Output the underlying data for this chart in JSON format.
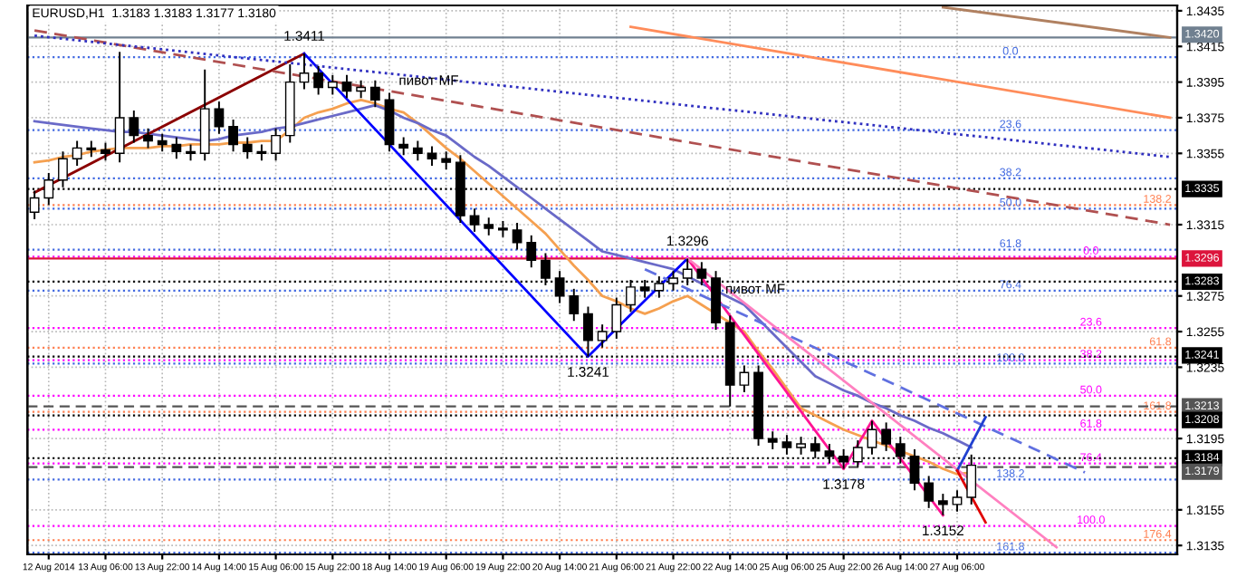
{
  "chart_data": {
    "type": "candlestick",
    "title": "EURUSD,H1  1.3183 1.3183 1.3177 1.3180",
    "categories": [
      null,
      "12 Aug 2014",
      null,
      null,
      null,
      "13 Aug 06:00",
      null,
      null,
      null,
      "13 Aug 22:00",
      null,
      null,
      null,
      "14 Aug 14:00",
      null,
      null,
      null,
      "15 Aug 06:00",
      null,
      null,
      null,
      "15 Aug 22:00",
      null,
      null,
      null,
      "18 Aug 14:00",
      null,
      null,
      null,
      "19 Aug 06:00",
      null,
      null,
      null,
      "19 Aug 22:00",
      null,
      null,
      null,
      "20 Aug 14:00",
      null,
      null,
      null,
      "21 Aug 06:00",
      null,
      null,
      null,
      "21 Aug 22:00",
      null,
      null,
      null,
      "22 Aug 14:00",
      null,
      null,
      null,
      "25 Aug 06:00",
      null,
      null,
      null,
      "25 Aug 22:00",
      null,
      null,
      null,
      "26 Aug 14:00",
      null,
      null,
      null,
      "27 Aug 06:00",
      null,
      null,
      null,
      null,
      null,
      null,
      null,
      null,
      null,
      null,
      null,
      null,
      null,
      null,
      null
    ],
    "ohlc": [
      [
        1.3322,
        1.3334,
        1.3318,
        1.333
      ],
      [
        1.333,
        1.3344,
        1.3326,
        1.334
      ],
      [
        1.334,
        1.3356,
        1.3336,
        1.3352
      ],
      [
        1.3352,
        1.3362,
        1.3348,
        1.3358
      ],
      [
        1.3358,
        1.3362,
        1.3353,
        1.3357
      ],
      [
        1.3357,
        1.3361,
        1.3351,
        1.3355
      ],
      [
        1.3355,
        1.3412,
        1.335,
        1.3375
      ],
      [
        1.3375,
        1.3379,
        1.3361,
        1.3365
      ],
      [
        1.3365,
        1.3369,
        1.3358,
        1.3362
      ],
      [
        1.3362,
        1.3366,
        1.3356,
        1.336
      ],
      [
        1.336,
        1.3364,
        1.3352,
        1.3356
      ],
      [
        1.3356,
        1.336,
        1.3351,
        1.3355
      ],
      [
        1.3355,
        1.3402,
        1.3351,
        1.338
      ],
      [
        1.338,
        1.3384,
        1.3366,
        1.337
      ],
      [
        1.337,
        1.3374,
        1.3356,
        1.336
      ],
      [
        1.336,
        1.3364,
        1.3352,
        1.3356
      ],
      [
        1.3356,
        1.336,
        1.3351,
        1.3355
      ],
      [
        1.3355,
        1.3369,
        1.3351,
        1.3365
      ],
      [
        1.3365,
        1.3405,
        1.3361,
        1.3395
      ],
      [
        1.3395,
        1.3411,
        1.3391,
        1.34
      ],
      [
        1.34,
        1.3404,
        1.3388,
        1.3392
      ],
      [
        1.3392,
        1.3399,
        1.3388,
        1.3395
      ],
      [
        1.3395,
        1.3399,
        1.3386,
        1.339
      ],
      [
        1.339,
        1.3396,
        1.3386,
        1.3392
      ],
      [
        1.3392,
        1.3396,
        1.3381,
        1.3385
      ],
      [
        1.3385,
        1.3389,
        1.3356,
        1.336
      ],
      [
        1.336,
        1.3364,
        1.3354,
        1.3358
      ],
      [
        1.3358,
        1.3362,
        1.3351,
        1.3355
      ],
      [
        1.3355,
        1.3359,
        1.3348,
        1.3352
      ],
      [
        1.3352,
        1.3356,
        1.3346,
        1.335
      ],
      [
        1.335,
        1.3354,
        1.3316,
        1.332
      ],
      [
        1.332,
        1.3324,
        1.3311,
        1.3315
      ],
      [
        1.3315,
        1.3319,
        1.3309,
        1.3313
      ],
      [
        1.3313,
        1.3317,
        1.3308,
        1.3312
      ],
      [
        1.3312,
        1.3316,
        1.3301,
        1.3305
      ],
      [
        1.3305,
        1.3309,
        1.3291,
        1.3295
      ],
      [
        1.3295,
        1.3299,
        1.3281,
        1.3285
      ],
      [
        1.3285,
        1.3289,
        1.3271,
        1.3275
      ],
      [
        1.3275,
        1.3279,
        1.3261,
        1.3265
      ],
      [
        1.3265,
        1.3269,
        1.3241,
        1.325
      ],
      [
        1.325,
        1.3259,
        1.3246,
        1.3255
      ],
      [
        1.3255,
        1.3274,
        1.3251,
        1.327
      ],
      [
        1.327,
        1.3284,
        1.3266,
        1.328
      ],
      [
        1.328,
        1.3284,
        1.3274,
        1.3278
      ],
      [
        1.3278,
        1.3286,
        1.3274,
        1.3282
      ],
      [
        1.3282,
        1.3289,
        1.3278,
        1.3285
      ],
      [
        1.3285,
        1.3296,
        1.3281,
        1.329
      ],
      [
        1.329,
        1.3294,
        1.3281,
        1.3285
      ],
      [
        1.3285,
        1.3289,
        1.3256,
        1.326
      ],
      [
        1.326,
        1.3264,
        1.3213,
        1.3225
      ],
      [
        1.3225,
        1.3236,
        1.3221,
        1.3232
      ],
      [
        1.3232,
        1.3236,
        1.3191,
        1.3195
      ],
      [
        1.3195,
        1.3199,
        1.3189,
        1.3193
      ],
      [
        1.3193,
        1.3197,
        1.3186,
        1.319
      ],
      [
        1.319,
        1.3196,
        1.3186,
        1.3192
      ],
      [
        1.3192,
        1.3196,
        1.3184,
        1.3188
      ],
      [
        1.3188,
        1.3192,
        1.3181,
        1.3185
      ],
      [
        1.3185,
        1.3189,
        1.3178,
        1.3182
      ],
      [
        1.3182,
        1.3194,
        1.3179,
        1.319
      ],
      [
        1.319,
        1.3205,
        1.3186,
        1.32
      ],
      [
        1.32,
        1.3204,
        1.3188,
        1.3192
      ],
      [
        1.3192,
        1.3196,
        1.3181,
        1.3185
      ],
      [
        1.3185,
        1.3189,
        1.3166,
        1.317
      ],
      [
        1.317,
        1.3174,
        1.3156,
        1.316
      ],
      [
        1.316,
        1.3164,
        1.3152,
        1.3158
      ],
      [
        1.3158,
        1.3166,
        1.3154,
        1.3162
      ],
      [
        1.3162,
        1.3186,
        1.3158,
        1.318
      ],
      null,
      null,
      null,
      null,
      null,
      null,
      null,
      null,
      null,
      null,
      null,
      null,
      null,
      null
    ],
    "series": [
      {
        "type": "line",
        "color": "#f5a050",
        "values": [
          1.335,
          1.3351,
          1.3353,
          1.3354,
          1.3356,
          1.3357,
          1.3358,
          1.3358,
          1.3358,
          1.3359,
          1.3359,
          1.336,
          1.336,
          1.336,
          1.3361,
          1.3361,
          1.3362,
          1.3362,
          1.3368,
          1.3375,
          1.3378,
          1.338,
          1.3383,
          1.3385,
          1.3383,
          1.338,
          1.3378,
          1.3372,
          1.3365,
          1.3358,
          1.3352,
          1.3345,
          1.3338,
          1.3331,
          1.3324,
          1.3317,
          1.331,
          1.3301,
          1.3292,
          1.3284,
          1.3275,
          1.3272,
          1.3268,
          1.3265,
          1.3268,
          1.3272,
          1.3275,
          1.327,
          1.3265,
          1.326,
          1.3255,
          1.3244,
          1.3234,
          1.3223,
          1.3212,
          1.3208,
          1.3204,
          1.32,
          1.3197,
          1.3194,
          1.3191,
          1.3188,
          1.3185,
          1.3182,
          1.3178,
          1.3175,
          1.3176,
          null,
          null,
          null,
          null,
          null,
          null,
          null,
          null,
          null,
          null,
          null,
          null,
          null,
          null
        ]
      },
      {
        "type": "line",
        "color": "#6a6ac8",
        "values": [
          1.3373,
          1.3372,
          1.3371,
          1.337,
          1.3369,
          1.3368,
          1.3367,
          1.3367,
          1.3366,
          1.3365,
          1.3364,
          1.3363,
          1.3362,
          1.3363,
          1.3365,
          1.3366,
          1.3367,
          1.3369,
          1.337,
          1.3372,
          1.3374,
          1.3376,
          1.3378,
          1.338,
          1.3382,
          1.3379,
          1.3375,
          1.3372,
          1.3368,
          1.3365,
          1.3359,
          1.3353,
          1.3348,
          1.3342,
          1.3336,
          1.333,
          1.3324,
          1.3318,
          1.3312,
          1.3306,
          1.33,
          1.3298,
          1.3296,
          1.3294,
          1.3292,
          1.329,
          1.3286,
          1.3282,
          1.3278,
          1.3274,
          1.327,
          1.3262,
          1.3254,
          1.3246,
          1.3238,
          1.323,
          1.3226,
          1.3222,
          1.3219,
          1.3215,
          1.3212,
          1.3208,
          1.3205,
          1.3201,
          1.3198,
          1.3194,
          1.319,
          null,
          null,
          null,
          null,
          null,
          null,
          null,
          null,
          null,
          null,
          null,
          null,
          null,
          null
        ]
      },
      {
        "type": "line",
        "color": "#8b0000",
        "values": [
          1.3333,
          null,
          null,
          null,
          null,
          null,
          null,
          null,
          null,
          null,
          null,
          null,
          null,
          null,
          null,
          null,
          null,
          null,
          null,
          1.3411,
          null,
          null,
          null,
          null,
          null,
          null,
          null,
          null,
          null,
          null,
          null,
          null,
          null,
          null,
          null,
          null,
          null,
          null,
          null,
          null,
          null,
          null,
          null,
          null,
          null,
          null,
          null,
          null,
          null,
          null,
          null,
          null,
          null,
          null,
          null,
          null,
          null,
          null,
          null,
          null,
          null,
          null,
          null,
          null,
          null,
          null,
          null,
          null,
          null,
          null,
          null,
          null,
          null,
          null,
          null,
          null,
          null,
          null,
          null,
          null,
          null
        ]
      },
      {
        "type": "line",
        "color": "#0000ff",
        "values": [
          null,
          null,
          null,
          null,
          null,
          null,
          null,
          null,
          null,
          null,
          null,
          null,
          null,
          null,
          null,
          null,
          null,
          null,
          null,
          1.3411,
          null,
          null,
          null,
          null,
          null,
          null,
          null,
          null,
          null,
          null,
          null,
          null,
          null,
          null,
          null,
          null,
          null,
          null,
          null,
          1.3241,
          null,
          null,
          null,
          null,
          null,
          null,
          1.3296,
          null,
          null,
          null,
          null,
          null,
          null,
          null,
          null,
          null,
          null,
          null,
          null,
          null,
          null,
          null,
          null,
          null,
          null,
          null,
          null,
          null,
          null,
          null,
          null,
          null,
          null,
          null,
          null,
          null,
          null,
          null,
          null,
          null,
          null
        ]
      },
      {
        "type": "line",
        "color": "#ff1493",
        "values": [
          null,
          null,
          null,
          null,
          null,
          null,
          null,
          null,
          null,
          null,
          null,
          null,
          null,
          null,
          null,
          null,
          null,
          null,
          null,
          null,
          null,
          null,
          null,
          null,
          null,
          null,
          null,
          null,
          null,
          null,
          null,
          null,
          null,
          null,
          null,
          null,
          null,
          null,
          null,
          null,
          null,
          null,
          null,
          null,
          null,
          null,
          1.3296,
          null,
          null,
          null,
          null,
          null,
          null,
          null,
          null,
          null,
          null,
          1.3178,
          null,
          1.3205,
          null,
          null,
          null,
          null,
          1.3152,
          null,
          null,
          null,
          null,
          null,
          null,
          null,
          null,
          null,
          null,
          null,
          null,
          null,
          null,
          null,
          null
        ]
      },
      {
        "type": "line",
        "color": "#b05050",
        "line_style": "dashed",
        "values": [
          1.3424,
          null,
          null,
          null,
          null,
          null,
          null,
          null,
          null,
          null,
          null,
          null,
          null,
          null,
          null,
          null,
          null,
          null,
          null,
          null,
          null,
          null,
          null,
          null,
          null,
          null,
          null,
          null,
          null,
          null,
          null,
          null,
          null,
          null,
          null,
          null,
          null,
          null,
          null,
          null,
          null,
          null,
          null,
          null,
          null,
          null,
          null,
          null,
          null,
          null,
          null,
          null,
          null,
          null,
          null,
          null,
          null,
          null,
          null,
          null,
          null,
          null,
          null,
          null,
          null,
          null,
          null,
          null,
          null,
          null,
          null,
          null,
          null,
          null,
          null,
          null,
          null,
          null,
          null,
          null,
          1.3315
        ]
      },
      {
        "type": "line",
        "color": "#ff8c5a",
        "values": [
          null,
          null,
          null,
          null,
          null,
          null,
          null,
          null,
          null,
          null,
          null,
          null,
          null,
          null,
          null,
          null,
          null,
          null,
          null,
          null,
          null,
          null,
          null,
          null,
          null,
          null,
          null,
          null,
          null,
          null,
          null,
          null,
          null,
          null,
          null,
          null,
          null,
          null,
          null,
          null,
          null,
          null,
          1.3426,
          null,
          null,
          null,
          null,
          null,
          null,
          null,
          null,
          null,
          null,
          null,
          null,
          null,
          null,
          null,
          null,
          null,
          null,
          null,
          null,
          null,
          null,
          null,
          null,
          null,
          null,
          null,
          null,
          null,
          null,
          null,
          null,
          null,
          null,
          null,
          null,
          null,
          1.3375
        ]
      },
      {
        "type": "line",
        "color": "#3030c0",
        "line_style": "dotted",
        "values": [
          1.3421,
          null,
          null,
          null,
          null,
          null,
          null,
          null,
          null,
          null,
          null,
          null,
          null,
          null,
          null,
          null,
          null,
          null,
          null,
          null,
          null,
          null,
          null,
          null,
          null,
          null,
          null,
          null,
          null,
          null,
          null,
          null,
          null,
          null,
          null,
          null,
          null,
          null,
          null,
          null,
          null,
          null,
          null,
          null,
          null,
          null,
          null,
          null,
          null,
          null,
          null,
          null,
          null,
          null,
          null,
          null,
          null,
          null,
          null,
          null,
          null,
          null,
          null,
          null,
          null,
          null,
          null,
          null,
          null,
          null,
          null,
          null,
          null,
          null,
          null,
          null,
          null,
          null,
          null,
          null,
          1.3353
        ]
      },
      {
        "type": "line",
        "color": "#b08060",
        "values": [
          null,
          null,
          null,
          null,
          null,
          null,
          null,
          null,
          null,
          null,
          null,
          null,
          null,
          null,
          null,
          null,
          null,
          null,
          null,
          null,
          null,
          null,
          null,
          null,
          null,
          null,
          null,
          null,
          null,
          null,
          null,
          null,
          null,
          null,
          null,
          null,
          null,
          null,
          null,
          null,
          null,
          null,
          null,
          null,
          null,
          null,
          null,
          null,
          null,
          null,
          null,
          null,
          null,
          null,
          null,
          null,
          null,
          null,
          null,
          null,
          null,
          null,
          null,
          null,
          1.3437,
          null,
          null,
          null,
          null,
          null,
          null,
          null,
          null,
          null,
          null,
          null,
          null,
          null,
          null,
          null,
          1.342
        ]
      },
      {
        "type": "line",
        "color": "#6070e0",
        "line_style": "dashed",
        "values": [
          null,
          null,
          null,
          null,
          null,
          null,
          null,
          null,
          null,
          null,
          null,
          null,
          null,
          null,
          null,
          null,
          null,
          null,
          null,
          null,
          null,
          null,
          null,
          null,
          null,
          null,
          null,
          null,
          null,
          null,
          null,
          null,
          null,
          null,
          null,
          null,
          null,
          null,
          null,
          null,
          null,
          null,
          null,
          1.329,
          null,
          null,
          null,
          null,
          null,
          null,
          null,
          null,
          null,
          null,
          null,
          null,
          null,
          null,
          null,
          null,
          null,
          null,
          null,
          null,
          null,
          null,
          null,
          null,
          null,
          null,
          null,
          null,
          null,
          null,
          1.3176,
          null,
          null,
          null,
          null,
          null,
          null
        ]
      },
      {
        "type": "line",
        "color": "#ff80c0",
        "values": [
          null,
          null,
          null,
          null,
          null,
          null,
          null,
          null,
          null,
          null,
          null,
          null,
          null,
          null,
          null,
          null,
          null,
          null,
          null,
          null,
          null,
          null,
          null,
          null,
          null,
          null,
          null,
          null,
          null,
          null,
          null,
          null,
          null,
          null,
          null,
          null,
          null,
          null,
          null,
          null,
          null,
          null,
          null,
          null,
          null,
          null,
          1.3296,
          null,
          null,
          null,
          null,
          null,
          null,
          null,
          null,
          null,
          null,
          null,
          null,
          null,
          null,
          null,
          null,
          null,
          null,
          null,
          null,
          null,
          null,
          null,
          null,
          null,
          1.3134,
          null,
          null,
          null,
          null,
          null,
          null,
          null,
          null
        ]
      },
      {
        "type": "line",
        "color": "#2040d0",
        "values": [
          null,
          null,
          null,
          null,
          null,
          null,
          null,
          null,
          null,
          null,
          null,
          null,
          null,
          null,
          null,
          null,
          null,
          null,
          null,
          null,
          null,
          null,
          null,
          null,
          null,
          null,
          null,
          null,
          null,
          null,
          null,
          null,
          null,
          null,
          null,
          null,
          null,
          null,
          null,
          null,
          null,
          null,
          null,
          null,
          null,
          null,
          null,
          null,
          null,
          null,
          null,
          null,
          null,
          null,
          null,
          null,
          null,
          null,
          null,
          null,
          null,
          null,
          null,
          null,
          null,
          1.3177,
          null,
          1.3207,
          null,
          null,
          null,
          null,
          null,
          null,
          null,
          null,
          null,
          null,
          null,
          null,
          null
        ]
      },
      {
        "type": "line",
        "color": "#e00000",
        "values": [
          null,
          null,
          null,
          null,
          null,
          null,
          null,
          null,
          null,
          null,
          null,
          null,
          null,
          null,
          null,
          null,
          null,
          null,
          null,
          null,
          null,
          null,
          null,
          null,
          null,
          null,
          null,
          null,
          null,
          null,
          null,
          null,
          null,
          null,
          null,
          null,
          null,
          null,
          null,
          null,
          null,
          null,
          null,
          null,
          null,
          null,
          null,
          null,
          null,
          null,
          null,
          null,
          null,
          null,
          null,
          null,
          null,
          null,
          null,
          null,
          null,
          null,
          null,
          null,
          null,
          1.3177,
          null,
          1.3148,
          null,
          null,
          null,
          null,
          null,
          null,
          null,
          null,
          null,
          null,
          null,
          null,
          null
        ]
      }
    ],
    "ylim": [
      1.313,
      1.3438
    ],
    "yticks": [
      1.3435,
      1.3415,
      1.3395,
      1.3375,
      1.3355,
      1.3315,
      1.3275,
      1.3255,
      1.3235,
      1.3195,
      1.3155,
      1.3135
    ],
    "y2lim": [
      1.313,
      1.3438
    ],
    "grid": true,
    "ref_lines": [
      {
        "axis": "y",
        "value": 1.342,
        "label": "1.3420",
        "color": "#708090",
        "line_style": "solid"
      },
      {
        "axis": "y",
        "value": 1.3335,
        "label": "1.3335",
        "color": "#000000",
        "line_style": "dotted"
      },
      {
        "axis": "y",
        "value": 1.3296,
        "label": "1.3296",
        "color": "#dc143c",
        "line_style": "solid"
      },
      {
        "axis": "y",
        "value": 1.3283,
        "label": "1.3283",
        "color": "#000000",
        "line_style": "dotted"
      },
      {
        "axis": "y",
        "value": 1.3241,
        "label": "1.3241",
        "color": "#000000",
        "line_style": "dotted"
      },
      {
        "axis": "y",
        "value": 1.3213,
        "label": "1.3213",
        "color": "#555555",
        "line_style": "dashed"
      },
      {
        "axis": "y",
        "value": 1.3208,
        "label": "1.3208",
        "color": "#000000",
        "line_style": "dotted"
      },
      {
        "axis": "y",
        "value": 1.3184,
        "label": "1.3184",
        "color": "#000000",
        "line_style": "dotted"
      },
      {
        "axis": "y",
        "value": 1.3179,
        "label": "1.3179",
        "color": "#555555",
        "line_style": "dashed"
      },
      {
        "axis": "y2",
        "value": 1.3409,
        "color": "#4169e1",
        "line_style": "dotted"
      },
      {
        "axis": "y2",
        "value": 1.3368,
        "color": "#4169e1",
        "line_style": "dotted"
      },
      {
        "axis": "y2",
        "value": 1.3341,
        "color": "#4169e1",
        "line_style": "dotted"
      },
      {
        "axis": "y2",
        "value": 1.3324,
        "color": "#4169e1",
        "line_style": "dotted"
      },
      {
        "axis": "y2",
        "value": 1.3301,
        "color": "#4169e1",
        "line_style": "dotted"
      },
      {
        "axis": "y2",
        "value": 1.3278,
        "color": "#4169e1",
        "line_style": "dotted"
      },
      {
        "axis": "y2",
        "value": 1.3237,
        "color": "#4169e1",
        "line_style": "dotted"
      },
      {
        "axis": "y2",
        "value": 1.3172,
        "color": "#4169e1",
        "line_style": "dotted"
      },
      {
        "axis": "y2",
        "value": 1.3131,
        "color": "#4169e1",
        "line_style": "dotted"
      },
      {
        "axis": "y2",
        "value": 1.3297,
        "color": "#ff00ff",
        "line_style": "dotted"
      },
      {
        "axis": "y2",
        "value": 1.3257,
        "color": "#ff00ff",
        "line_style": "dotted"
      },
      {
        "axis": "y2",
        "value": 1.3239,
        "color": "#ff00ff",
        "line_style": "dotted"
      },
      {
        "axis": "y2",
        "value": 1.3219,
        "color": "#ff00ff",
        "line_style": "dotted"
      },
      {
        "axis": "y2",
        "value": 1.32,
        "color": "#ff00ff",
        "line_style": "dotted"
      },
      {
        "axis": "y2",
        "value": 1.3181,
        "color": "#ff00ff",
        "line_style": "dotted"
      },
      {
        "axis": "y2",
        "value": 1.3146,
        "color": "#ff00ff",
        "line_style": "dotted"
      },
      {
        "axis": "y2",
        "value": 1.3326,
        "color": "#ff7f50",
        "line_style": "dotted"
      },
      {
        "axis": "y2",
        "value": 1.3246,
        "color": "#ff7f50",
        "line_style": "dotted"
      },
      {
        "axis": "y2",
        "value": 1.321,
        "color": "#ff7f50",
        "line_style": "dotted"
      },
      {
        "axis": "y2",
        "value": 1.3138,
        "color": "#ff7f50",
        "line_style": "dotted"
      }
    ],
    "annotations": [
      {
        "text": "1.3411",
        "y": 1.3411
      },
      {
        "text": "1.3296",
        "y": 1.3296
      },
      {
        "text": "1.3241",
        "y": 1.3241
      },
      {
        "text": "1.3178",
        "y": 1.3178
      },
      {
        "text": "1.3152",
        "y": 1.3152
      },
      "пивот MF",
      "пивот MF",
      {
        "text": "0.0",
        "y": 1.3409
      },
      {
        "text": "23.6",
        "y": 1.3368
      },
      {
        "text": "38.2",
        "y": 1.3341
      },
      {
        "text": "50.0",
        "y": 1.3324
      },
      {
        "text": "61.8",
        "y": 1.3301
      },
      {
        "text": "76.4",
        "y": 1.3278
      },
      {
        "text": "100.0",
        "y": 1.3237
      },
      {
        "text": "138.2",
        "y": 1.3172
      },
      {
        "text": "161.8",
        "y": 1.3131
      },
      {
        "text": "0.0",
        "y": 1.3297
      },
      {
        "text": "23.6",
        "y": 1.3257
      },
      {
        "text": "38.2",
        "y": 1.3239
      },
      {
        "text": "50.0",
        "y": 1.3219
      },
      {
        "text": "61.8",
        "y": 1.32
      },
      {
        "text": "76.4",
        "y": 1.3181
      },
      {
        "text": "100.0",
        "y": 1.3146
      },
      {
        "text": "138.2",
        "y": 1.3326
      },
      {
        "text": "61.8",
        "y": 1.3246
      },
      {
        "text": "161.8",
        "y": 1.321
      },
      {
        "text": "176.4",
        "y": 1.3138
      }
    ]
  }
}
